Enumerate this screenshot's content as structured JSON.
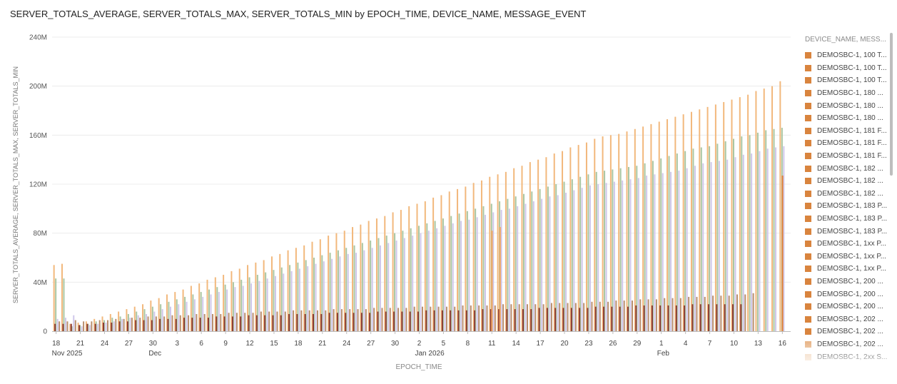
{
  "chart_data": {
    "type": "bar",
    "title": "SERVER_TOTALS_AVERAGE, SERVER_TOTALS_MAX, SERVER_TOTALS_MIN by EPOCH_TIME, DEVICE_NAME, MESSAGE_EVENT",
    "xlabel": "EPOCH_TIME",
    "ylabel": "SERVER_TOTALS_AVERAGE, SERVER_TOTALS_MAX, SERVER_TOTALS_MIN",
    "ylim": [
      0,
      240000000
    ],
    "y_ticks": [
      "0",
      "40M",
      "80M",
      "120M",
      "160M",
      "200M",
      "240M"
    ],
    "grid": true,
    "legend_position": "right",
    "x_tick_labels": [
      {
        "day": "18",
        "month": "Nov 2025"
      },
      {
        "day": "21"
      },
      {
        "day": "24"
      },
      {
        "day": "27"
      },
      {
        "day": "30",
        "month": "Dec"
      },
      {
        "day": "3"
      },
      {
        "day": "6"
      },
      {
        "day": "9"
      },
      {
        "day": "12"
      },
      {
        "day": "15"
      },
      {
        "day": "18"
      },
      {
        "day": "21"
      },
      {
        "day": "24"
      },
      {
        "day": "27"
      },
      {
        "day": "30"
      },
      {
        "day": "2",
        "month": "Jan 2026"
      },
      {
        "day": "5"
      },
      {
        "day": "8"
      },
      {
        "day": "11"
      },
      {
        "day": "14"
      },
      {
        "day": "17"
      },
      {
        "day": "20"
      },
      {
        "day": "23"
      },
      {
        "day": "26"
      },
      {
        "day": "29"
      },
      {
        "day": "1",
        "month": "Feb"
      },
      {
        "day": "4"
      },
      {
        "day": "7"
      },
      {
        "day": "10"
      },
      {
        "day": "13"
      },
      {
        "day": "16"
      }
    ],
    "categories": [
      "Nov 18",
      "Nov 19",
      "Nov 20",
      "Nov 21",
      "Nov 22",
      "Nov 23",
      "Nov 24",
      "Nov 25",
      "Nov 26",
      "Nov 27",
      "Nov 28",
      "Nov 29",
      "Nov 30",
      "Dec 1",
      "Dec 2",
      "Dec 3",
      "Dec 4",
      "Dec 5",
      "Dec 6",
      "Dec 7",
      "Dec 8",
      "Dec 9",
      "Dec 10",
      "Dec 11",
      "Dec 12",
      "Dec 13",
      "Dec 14",
      "Dec 15",
      "Dec 16",
      "Dec 17",
      "Dec 18",
      "Dec 19",
      "Dec 20",
      "Dec 21",
      "Dec 22",
      "Dec 23",
      "Dec 24",
      "Dec 25",
      "Dec 26",
      "Dec 27",
      "Dec 28",
      "Dec 29",
      "Dec 30",
      "Dec 31",
      "Jan 1",
      "Jan 2",
      "Jan 3",
      "Jan 4",
      "Jan 5",
      "Jan 6",
      "Jan 7",
      "Jan 8",
      "Jan 9",
      "Jan 10",
      "Jan 11",
      "Jan 12",
      "Jan 13",
      "Jan 14",
      "Jan 15",
      "Jan 16",
      "Jan 17",
      "Jan 18",
      "Jan 19",
      "Jan 20",
      "Jan 21",
      "Jan 22",
      "Jan 23",
      "Jan 24",
      "Jan 25",
      "Jan 26",
      "Jan 27",
      "Jan 28",
      "Jan 29",
      "Jan 30",
      "Jan 31",
      "Feb 1",
      "Feb 2",
      "Feb 3",
      "Feb 4",
      "Feb 5",
      "Feb 6",
      "Feb 7",
      "Feb 8",
      "Feb 9",
      "Feb 10",
      "Feb 11",
      "Feb 12",
      "Feb 13",
      "Feb 14",
      "Feb 15",
      "Feb 16"
    ],
    "series": [
      {
        "color": "#f2b87c",
        "values": [
          54000000,
          55000000,
          6000000,
          7000000,
          8000000,
          10000000,
          12000000,
          14000000,
          16000000,
          18000000,
          20000000,
          22000000,
          25000000,
          27000000,
          30000000,
          32000000,
          34000000,
          37000000,
          39000000,
          42000000,
          44000000,
          46000000,
          49000000,
          51000000,
          54000000,
          56000000,
          58000000,
          61000000,
          63000000,
          66000000,
          68000000,
          70000000,
          73000000,
          75000000,
          78000000,
          80000000,
          82000000,
          85000000,
          87000000,
          90000000,
          92000000,
          94000000,
          97000000,
          99000000,
          102000000,
          104000000,
          106000000,
          109000000,
          111000000,
          114000000,
          116000000,
          118000000,
          121000000,
          123000000,
          126000000,
          128000000,
          130000000,
          133000000,
          135000000,
          138000000,
          140000000,
          142000000,
          145000000,
          147000000,
          150000000,
          152000000,
          154000000,
          157000000,
          159000000,
          160000000,
          161000000,
          163000000,
          165000000,
          167000000,
          169000000,
          171000000,
          173000000,
          175000000,
          177000000,
          179000000,
          181000000,
          183000000,
          185000000,
          187000000,
          189000000,
          191000000,
          193000000,
          196000000,
          198000000,
          200000000,
          204000000
        ]
      },
      {
        "color": "#a9c6a2",
        "values": [
          43000000,
          43000000,
          4000000,
          5000000,
          6000000,
          8000000,
          9000000,
          11000000,
          12000000,
          14000000,
          16000000,
          18000000,
          20000000,
          22000000,
          24000000,
          26000000,
          28000000,
          30000000,
          32000000,
          34000000,
          36000000,
          38000000,
          40000000,
          42000000,
          44000000,
          46000000,
          48000000,
          50000000,
          52000000,
          54000000,
          56000000,
          58000000,
          60000000,
          62000000,
          64000000,
          66000000,
          68000000,
          70000000,
          72000000,
          74000000,
          76000000,
          78000000,
          80000000,
          82000000,
          84000000,
          86000000,
          88000000,
          90000000,
          92000000,
          94000000,
          96000000,
          98000000,
          100000000,
          102000000,
          104000000,
          106000000,
          108000000,
          110000000,
          112000000,
          114000000,
          116000000,
          118000000,
          120000000,
          122000000,
          124000000,
          126000000,
          128000000,
          130000000,
          131000000,
          132000000,
          133000000,
          134000000,
          135000000,
          137000000,
          139000000,
          141000000,
          143000000,
          145000000,
          147000000,
          149000000,
          150000000,
          151000000,
          153000000,
          155000000,
          157000000,
          159000000,
          160000000,
          162000000,
          164000000,
          165000000,
          166000000
        ]
      },
      {
        "color": "#cfc7ea",
        "values": [
          10000000,
          11000000,
          13000000,
          4000000,
          5000000,
          6000000,
          7000000,
          8000000,
          10000000,
          11000000,
          13000000,
          14000000,
          16000000,
          18000000,
          20000000,
          22000000,
          24000000,
          26000000,
          28000000,
          30000000,
          32000000,
          34000000,
          36000000,
          37000000,
          39000000,
          41000000,
          43000000,
          45000000,
          47000000,
          49000000,
          51000000,
          53000000,
          55000000,
          57000000,
          59000000,
          61000000,
          63000000,
          64000000,
          66000000,
          68000000,
          70000000,
          72000000,
          74000000,
          76000000,
          78000000,
          80000000,
          82000000,
          84000000,
          86000000,
          88000000,
          90000000,
          91000000,
          93000000,
          95000000,
          97000000,
          99000000,
          100000000,
          102000000,
          104000000,
          106000000,
          108000000,
          110000000,
          111000000,
          113000000,
          115000000,
          117000000,
          119000000,
          120000000,
          121000000,
          122000000,
          123000000,
          124000000,
          125000000,
          127000000,
          128000000,
          129000000,
          130000000,
          131000000,
          133000000,
          135000000,
          137000000,
          138000000,
          139000000,
          140000000,
          142000000,
          144000000,
          145000000,
          147000000,
          149000000,
          150000000,
          151000000
        ]
      },
      {
        "color": "#b98f6e",
        "values": [
          8000000,
          8000000,
          9000000,
          8000000,
          8000000,
          9000000,
          9000000,
          10000000,
          10000000,
          11000000,
          11000000,
          12000000,
          12000000,
          12000000,
          13000000,
          13000000,
          13000000,
          14000000,
          14000000,
          14000000,
          14000000,
          15000000,
          15000000,
          15000000,
          15000000,
          16000000,
          16000000,
          16000000,
          16000000,
          17000000,
          17000000,
          17000000,
          17000000,
          17000000,
          18000000,
          18000000,
          18000000,
          18000000,
          18000000,
          19000000,
          19000000,
          19000000,
          19000000,
          19000000,
          20000000,
          20000000,
          20000000,
          20000000,
          20000000,
          20000000,
          21000000,
          21000000,
          21000000,
          21000000,
          21000000,
          22000000,
          22000000,
          22000000,
          22000000,
          22000000,
          22000000,
          23000000,
          23000000,
          23000000,
          23000000,
          23000000,
          24000000,
          24000000,
          24000000,
          25000000,
          25000000,
          25000000,
          26000000,
          26000000,
          26000000,
          27000000,
          27000000,
          27000000,
          28000000,
          28000000,
          28000000,
          29000000,
          29000000,
          29000000,
          30000000,
          30000000,
          31000000,
          0,
          0,
          0,
          0
        ]
      },
      {
        "color": "#8c3b35",
        "values": [
          6000000,
          6000000,
          6000000,
          5000000,
          6000000,
          6000000,
          7000000,
          7000000,
          8000000,
          8000000,
          9000000,
          9000000,
          9000000,
          10000000,
          10000000,
          10000000,
          11000000,
          11000000,
          11000000,
          11000000,
          12000000,
          12000000,
          12000000,
          12000000,
          13000000,
          13000000,
          13000000,
          13000000,
          13000000,
          14000000,
          14000000,
          14000000,
          14000000,
          14000000,
          15000000,
          15000000,
          15000000,
          15000000,
          15000000,
          15000000,
          16000000,
          16000000,
          16000000,
          16000000,
          16000000,
          16000000,
          17000000,
          17000000,
          17000000,
          17000000,
          17000000,
          17000000,
          17000000,
          18000000,
          18000000,
          18000000,
          18000000,
          18000000,
          18000000,
          18000000,
          19000000,
          19000000,
          19000000,
          19000000,
          19000000,
          19000000,
          19000000,
          20000000,
          20000000,
          20000000,
          20000000,
          20000000,
          21000000,
          21000000,
          21000000,
          21000000,
          21000000,
          21000000,
          21000000,
          22000000,
          22000000,
          22000000,
          22000000,
          22000000,
          22000000,
          22000000,
          0,
          0,
          0,
          0,
          0
        ]
      }
    ],
    "annotation_bars": [
      {
        "category": "Jan 11",
        "value": 82000000,
        "color": "#f0a660"
      },
      {
        "category": "Jan 12",
        "value": 85000000,
        "color": "#f0a660"
      },
      {
        "category": "Feb 16",
        "value": 127000000,
        "color": "#e3843c"
      }
    ]
  },
  "legend": {
    "title": "DEVICE_NAME, MESS...",
    "items": [
      {
        "label": "DEMOSBC-1, 100 T...",
        "color": "#d9843e"
      },
      {
        "label": "DEMOSBC-1, 100 T...",
        "color": "#d9843e"
      },
      {
        "label": "DEMOSBC-1, 100 T...",
        "color": "#d9843e"
      },
      {
        "label": "DEMOSBC-1, 180 ...",
        "color": "#d9843e"
      },
      {
        "label": "DEMOSBC-1, 180 ...",
        "color": "#d9843e"
      },
      {
        "label": "DEMOSBC-1, 180 ...",
        "color": "#d9843e"
      },
      {
        "label": "DEMOSBC-1, 181 F...",
        "color": "#d9843e"
      },
      {
        "label": "DEMOSBC-1, 181 F...",
        "color": "#d9843e"
      },
      {
        "label": "DEMOSBC-1, 181 F...",
        "color": "#d9843e"
      },
      {
        "label": "DEMOSBC-1, 182 ...",
        "color": "#d9843e"
      },
      {
        "label": "DEMOSBC-1, 182 ...",
        "color": "#d9843e"
      },
      {
        "label": "DEMOSBC-1, 182 ...",
        "color": "#d9843e"
      },
      {
        "label": "DEMOSBC-1, 183 P...",
        "color": "#d9843e"
      },
      {
        "label": "DEMOSBC-1, 183 P...",
        "color": "#d9843e"
      },
      {
        "label": "DEMOSBC-1, 183 P...",
        "color": "#d9843e"
      },
      {
        "label": "DEMOSBC-1, 1xx P...",
        "color": "#d9843e"
      },
      {
        "label": "DEMOSBC-1, 1xx P...",
        "color": "#d9843e"
      },
      {
        "label": "DEMOSBC-1, 1xx P...",
        "color": "#d9843e"
      },
      {
        "label": "DEMOSBC-1, 200 ...",
        "color": "#d9843e"
      },
      {
        "label": "DEMOSBC-1, 200 ...",
        "color": "#d9843e"
      },
      {
        "label": "DEMOSBC-1, 200 ...",
        "color": "#d9843e"
      },
      {
        "label": "DEMOSBC-1, 202 ...",
        "color": "#d9843e"
      },
      {
        "label": "DEMOSBC-1, 202 ...",
        "color": "#d9843e"
      },
      {
        "label": "DEMOSBC-1, 202 ...",
        "color": "#e9b88c"
      },
      {
        "label": "DEMOSBC-1, 2xx S...",
        "color": "#f1d3b6"
      }
    ]
  }
}
